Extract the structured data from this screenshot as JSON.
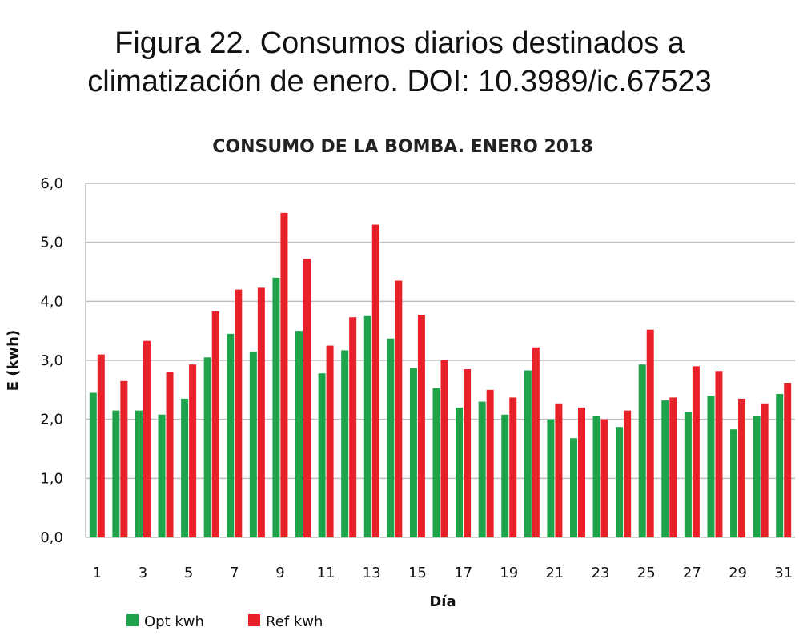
{
  "caption": {
    "line1": "Figura 22. Consumos diarios destinados a",
    "line2": "climatización de enero. DOI: 10.3989/ic.67523"
  },
  "chart_data": {
    "type": "bar",
    "title": "CONSUMO DE LA BOMBA. ENERO 2018",
    "xlabel": "Día",
    "ylabel": "E (kwh)",
    "ylim": [
      0,
      6
    ],
    "yticks": [
      "0,0",
      "1,0",
      "2,0",
      "3,0",
      "4,0",
      "5,0",
      "6,0"
    ],
    "xticks": [
      "1",
      "3",
      "5",
      "7",
      "9",
      "11",
      "13",
      "15",
      "17",
      "19",
      "21",
      "23",
      "25",
      "27",
      "29",
      "31"
    ],
    "categories": [
      1,
      2,
      3,
      4,
      5,
      6,
      7,
      8,
      9,
      10,
      11,
      12,
      13,
      14,
      15,
      16,
      17,
      18,
      19,
      20,
      21,
      22,
      23,
      24,
      25,
      26,
      27,
      28,
      29,
      30,
      31
    ],
    "grid": true,
    "legend_position": "bottom-left",
    "colors": {
      "opt": "#1ea34a",
      "ref": "#e8202a",
      "grid": "#bfbfbf"
    },
    "series": [
      {
        "name": "Opt kwh",
        "values": [
          2.45,
          2.15,
          2.15,
          2.08,
          2.35,
          3.05,
          3.45,
          3.15,
          4.4,
          3.5,
          2.78,
          3.17,
          3.75,
          3.37,
          2.87,
          2.53,
          2.2,
          2.3,
          2.08,
          2.83,
          2.0,
          1.68,
          2.05,
          1.87,
          2.93,
          2.32,
          2.12,
          2.4,
          1.83,
          2.05,
          2.43
        ]
      },
      {
        "name": "Ref kwh",
        "values": [
          3.1,
          2.65,
          3.33,
          2.8,
          2.93,
          3.83,
          4.2,
          4.23,
          5.5,
          4.72,
          3.25,
          3.73,
          5.3,
          4.35,
          3.77,
          3.0,
          2.85,
          2.5,
          2.37,
          3.22,
          2.27,
          2.2,
          2.0,
          2.15,
          3.52,
          2.37,
          2.9,
          2.82,
          2.35,
          2.27,
          2.62
        ]
      }
    ]
  }
}
